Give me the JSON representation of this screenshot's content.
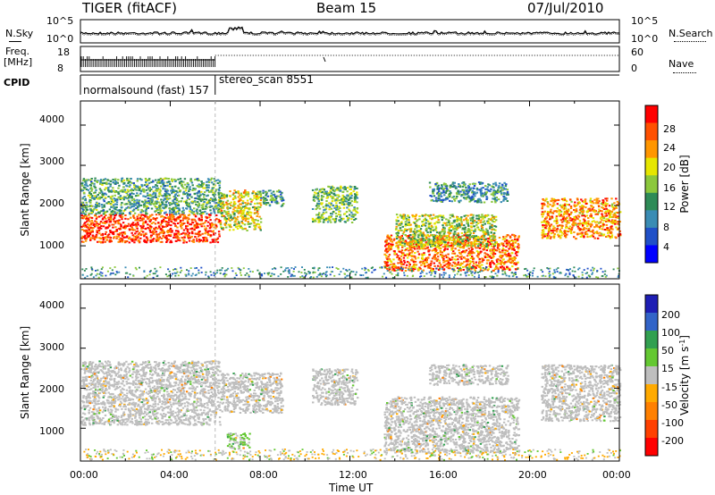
{
  "header": {
    "title": "TIGER (fitACF)",
    "beam": "Beam 15",
    "date": "07/Jul/2010"
  },
  "noise_panel": {
    "left_label": "N.Sky",
    "right_label": "N.Search",
    "left_ticks": [
      "10^5",
      "10^0"
    ],
    "right_ticks": [
      "10^5",
      "10^0"
    ]
  },
  "freq_panel": {
    "left_label_1": "Freq.",
    "left_label_2": "[MHz]",
    "right_label": "Nave",
    "left_ticks": [
      "18",
      "8"
    ],
    "right_ticks": [
      "60",
      "0"
    ]
  },
  "cpid": {
    "label": "CPID",
    "segments": [
      {
        "name": "normalsound (fast) 157",
        "start_hour": 0,
        "end_hour": 6
      },
      {
        "name": "stereo_scan 8551",
        "start_hour": 6,
        "end_hour": 24
      }
    ]
  },
  "xaxis": {
    "label": "Time UT",
    "ticks": [
      "00:00",
      "04:00",
      "08:00",
      "12:00",
      "16:00",
      "20:00",
      "00:00"
    ],
    "range_hours": [
      0,
      24
    ]
  },
  "chart_data": [
    {
      "type": "heatmap",
      "name_shown": "Power",
      "ylabel": "Slant Range [km]",
      "yticks": [
        1000,
        2000,
        3000,
        4000
      ],
      "ylim": [
        180,
        4600
      ],
      "colorbar": {
        "label": "Power [dB]",
        "ticks": [
          "4",
          "8",
          "12",
          "16",
          "20",
          "24",
          "28"
        ],
        "range": [
          0,
          30
        ],
        "colors": [
          "#0000ff",
          "#2050c8",
          "#3a8cb4",
          "#2e8b57",
          "#8cc83c",
          "#e6e600",
          "#ff9600",
          "#ff5000",
          "#ff0000"
        ]
      },
      "regions": [
        {
          "t0": 0.0,
          "t1": 6.2,
          "r0": 1100,
          "r1": 1800,
          "value": 26
        },
        {
          "t0": 0.0,
          "t1": 6.2,
          "r0": 1800,
          "r1": 2700,
          "value": 12
        },
        {
          "t0": 6.2,
          "t1": 8.0,
          "r0": 1400,
          "r1": 2400,
          "value": 18
        },
        {
          "t0": 8.0,
          "t1": 9.0,
          "r0": 2000,
          "r1": 2400,
          "value": 10
        },
        {
          "t0": 10.3,
          "t1": 12.3,
          "r0": 1600,
          "r1": 2500,
          "value": 14
        },
        {
          "t0": 13.5,
          "t1": 19.5,
          "r0": 400,
          "r1": 1300,
          "value": 24
        },
        {
          "t0": 14.0,
          "t1": 18.5,
          "r0": 1000,
          "r1": 1800,
          "value": 16
        },
        {
          "t0": 15.5,
          "t1": 19.0,
          "r0": 2100,
          "r1": 2600,
          "value": 10
        },
        {
          "t0": 20.5,
          "t1": 24.0,
          "r0": 1200,
          "r1": 2200,
          "value": 22
        }
      ]
    },
    {
      "type": "heatmap",
      "name_shown": "Velocity",
      "ylabel": "Slant Range [km]",
      "yticks": [
        1000,
        2000,
        3000,
        4000
      ],
      "ylim": [
        180,
        4600
      ],
      "colorbar": {
        "label": "Velocity [m s^-1]",
        "ticks": [
          "200",
          "100",
          "50",
          "15",
          "-15",
          "-50",
          "-100",
          "-200"
        ],
        "range": [
          -250,
          250
        ],
        "colors": [
          "#1e1eb4",
          "#3264c8",
          "#32a050",
          "#64c832",
          "#bebebe",
          "#ffaa00",
          "#ff8000",
          "#ff4000",
          "#ff0000"
        ]
      },
      "regions": [
        {
          "t0": 0.0,
          "t1": 6.2,
          "r0": 1100,
          "r1": 2700,
          "value": 0
        },
        {
          "t0": 6.2,
          "t1": 9.0,
          "r0": 1400,
          "r1": 2400,
          "value": 0
        },
        {
          "t0": 6.5,
          "t1": 7.5,
          "r0": 500,
          "r1": 900,
          "value": 30
        },
        {
          "t0": 10.3,
          "t1": 12.3,
          "r0": 1600,
          "r1": 2500,
          "value": 0
        },
        {
          "t0": 13.5,
          "t1": 19.5,
          "r0": 400,
          "r1": 1800,
          "value": 0
        },
        {
          "t0": 15.5,
          "t1": 19.0,
          "r0": 2100,
          "r1": 2600,
          "value": 0
        },
        {
          "t0": 20.5,
          "t1": 24.0,
          "r0": 1200,
          "r1": 2600,
          "value": 0
        }
      ]
    }
  ]
}
